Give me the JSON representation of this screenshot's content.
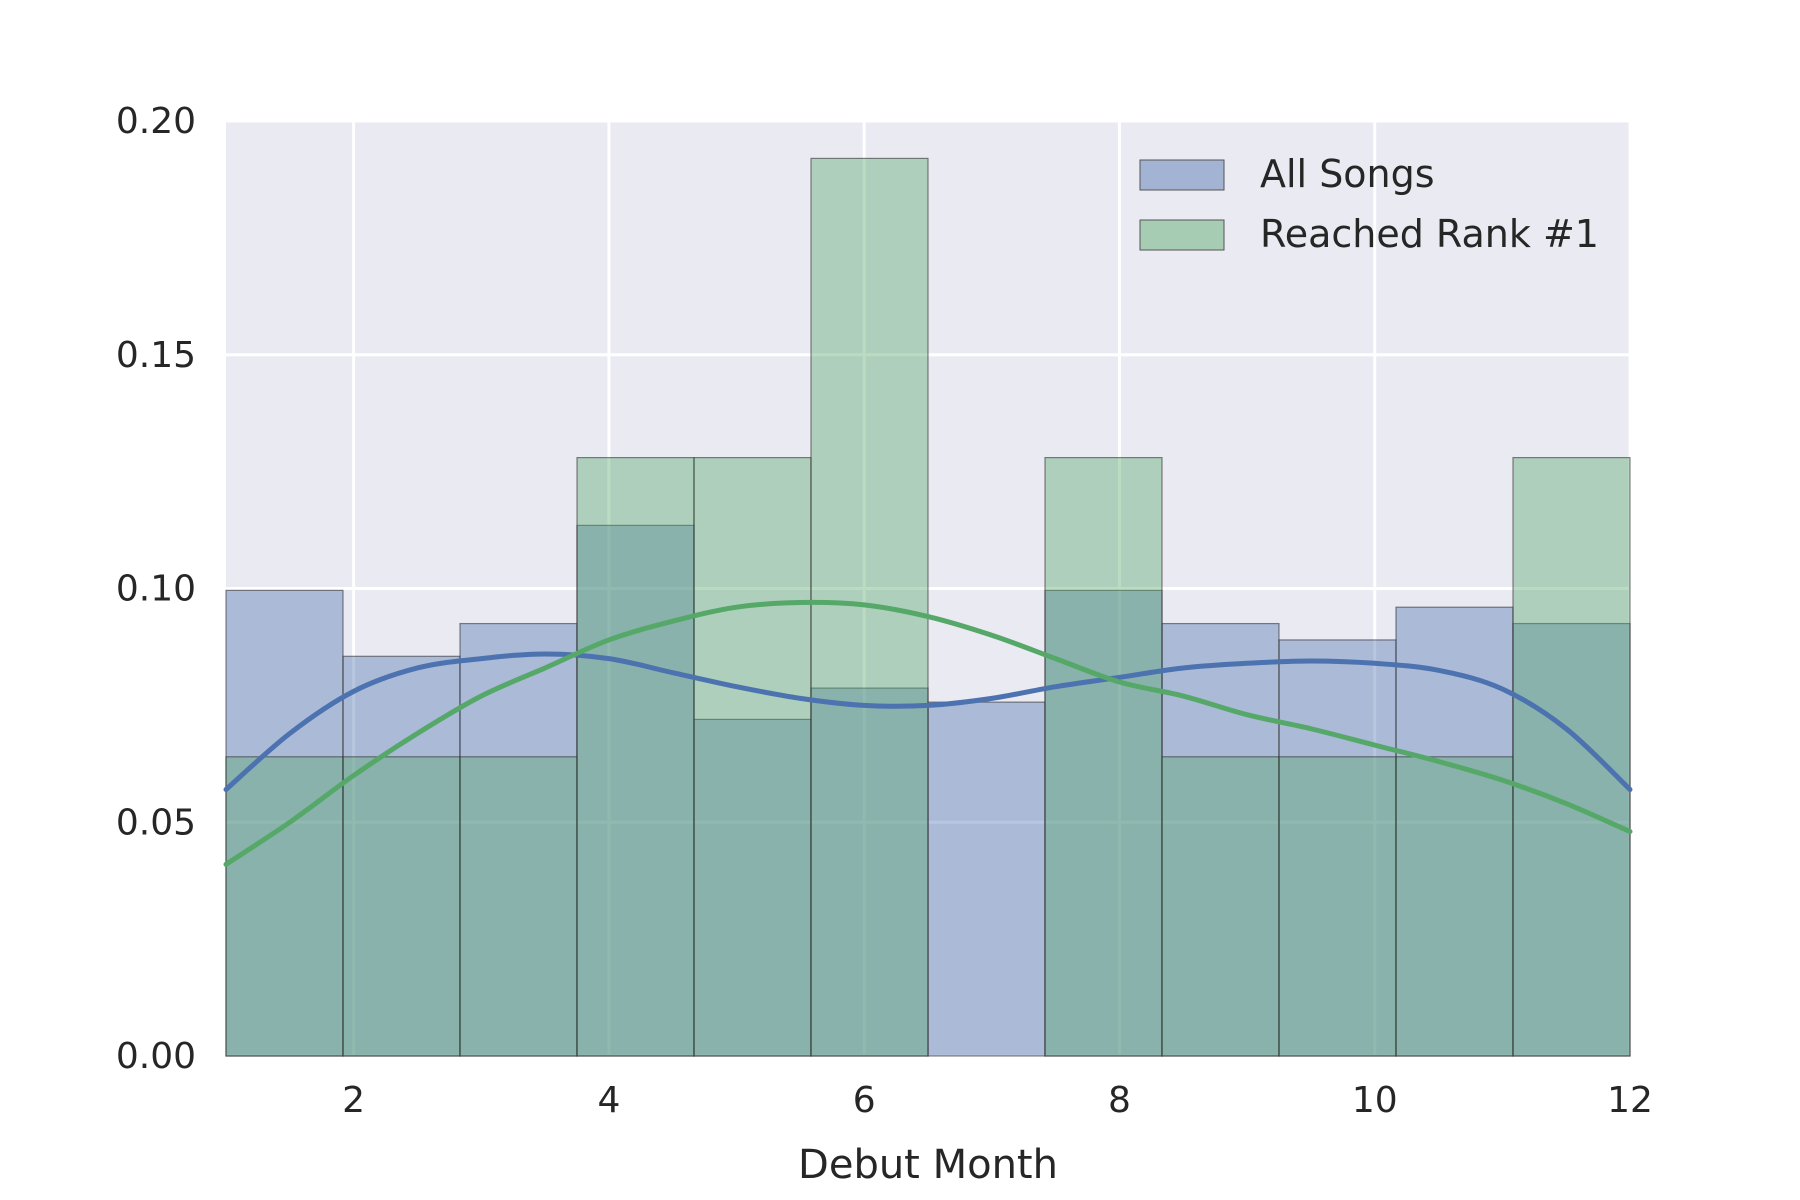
{
  "chart_data": {
    "type": "histogram",
    "title": "",
    "xlabel": "Debut Month",
    "ylabel": "",
    "xlim": [
      1,
      12
    ],
    "ylim": [
      0,
      0.2
    ],
    "xticks": [
      2,
      4,
      6,
      8,
      10,
      12
    ],
    "yticks": [
      0.0,
      0.05,
      0.1,
      0.15,
      0.2
    ],
    "ytick_format": 2,
    "grid": true,
    "legend_position": "top-right",
    "bin_edges": [
      1.0,
      1.9167,
      2.8333,
      3.75,
      4.6667,
      5.5833,
      6.5,
      7.4167,
      8.3333,
      9.25,
      10.1667,
      11.0833,
      12.0
    ],
    "series": [
      {
        "name": "All Songs",
        "color": "#4c72b0",
        "bar_color": "#a9b8d7",
        "densities": [
          0.0996,
          0.0855,
          0.0925,
          0.1135,
          0.072,
          0.0787,
          0.0757,
          0.0996,
          0.0925,
          0.089,
          0.096,
          0.0925
        ],
        "kde": [
          [
            1.0,
            0.057
          ],
          [
            1.5,
            0.069
          ],
          [
            2.0,
            0.078
          ],
          [
            2.5,
            0.083
          ],
          [
            3.0,
            0.085
          ],
          [
            3.5,
            0.086
          ],
          [
            4.0,
            0.085
          ],
          [
            4.5,
            0.082
          ],
          [
            5.0,
            0.079
          ],
          [
            5.5,
            0.0765
          ],
          [
            6.0,
            0.075
          ],
          [
            6.5,
            0.075
          ],
          [
            7.0,
            0.0765
          ],
          [
            7.5,
            0.079
          ],
          [
            8.0,
            0.081
          ],
          [
            8.5,
            0.083
          ],
          [
            9.0,
            0.084
          ],
          [
            9.5,
            0.0845
          ],
          [
            10.0,
            0.084
          ],
          [
            10.5,
            0.0825
          ],
          [
            11.0,
            0.0785
          ],
          [
            11.5,
            0.07
          ],
          [
            12.0,
            0.057
          ]
        ]
      },
      {
        "name": "Reached Rank #1",
        "color": "#55a868",
        "bar_color": "#afd1b8",
        "densities": [
          0.064,
          0.064,
          0.064,
          0.128,
          0.128,
          0.192,
          0.0,
          0.128,
          0.064,
          0.064,
          0.064,
          0.128
        ],
        "kde": [
          [
            1.0,
            0.041
          ],
          [
            1.5,
            0.05
          ],
          [
            2.0,
            0.06
          ],
          [
            2.5,
            0.069
          ],
          [
            3.0,
            0.077
          ],
          [
            3.5,
            0.083
          ],
          [
            4.0,
            0.089
          ],
          [
            4.5,
            0.093
          ],
          [
            5.0,
            0.096
          ],
          [
            5.5,
            0.097
          ],
          [
            6.0,
            0.0965
          ],
          [
            6.5,
            0.094
          ],
          [
            7.0,
            0.09
          ],
          [
            7.5,
            0.085
          ],
          [
            8.0,
            0.08
          ],
          [
            8.5,
            0.077
          ],
          [
            9.0,
            0.073
          ],
          [
            9.5,
            0.07
          ],
          [
            10.0,
            0.0665
          ],
          [
            10.5,
            0.063
          ],
          [
            11.0,
            0.059
          ],
          [
            11.5,
            0.054
          ],
          [
            12.0,
            0.048
          ]
        ]
      }
    ]
  }
}
